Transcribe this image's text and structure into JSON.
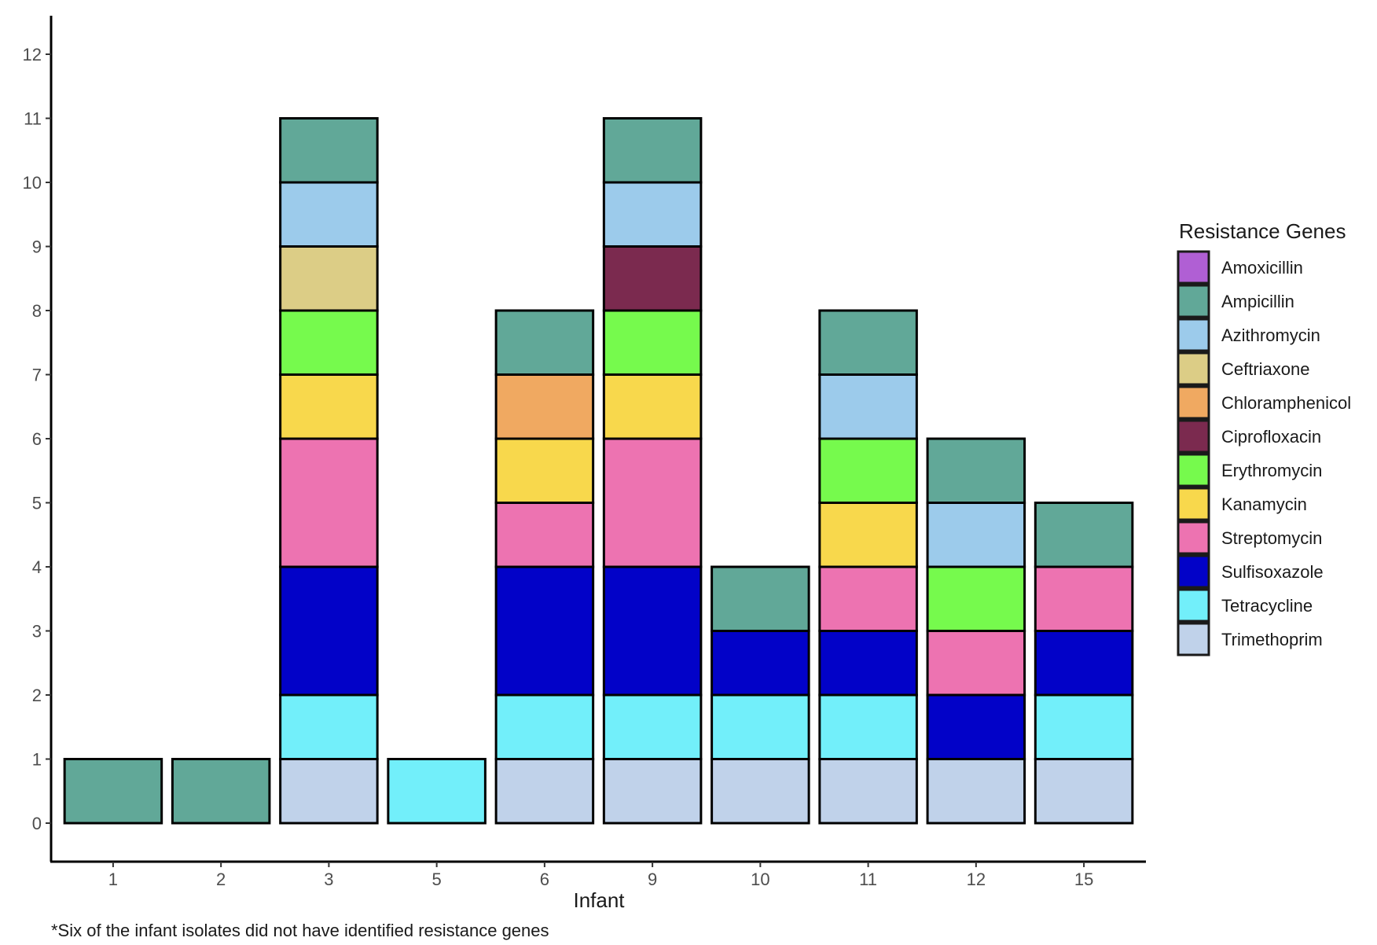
{
  "chart_data": {
    "type": "bar",
    "stacked": true,
    "xlabel": "Infant",
    "ylabel": "",
    "ylim": [
      0,
      12
    ],
    "yticks": [
      0,
      1,
      2,
      3,
      4,
      5,
      6,
      7,
      8,
      9,
      10,
      11,
      12
    ],
    "categories": [
      "1",
      "2",
      "3",
      "5",
      "6",
      "9",
      "10",
      "11",
      "12",
      "15"
    ],
    "legend_title": "Resistance Genes",
    "legend_position": "right",
    "caption": "*Six of the infant isolates did not have identified resistance genes",
    "colors": {
      "Amoxicillin": "#b05fd4",
      "Ampicillin": "#61a898",
      "Azithromycin": "#9ccbeb",
      "Ceftriaxone": "#dccd86",
      "Chloramphenicol": "#f0a961",
      "Ciprofloxacin": "#7b2a4f",
      "Erythromycin": "#76fa4d",
      "Kanamycin": "#f8d84c",
      "Streptomycin": "#ed73b1",
      "Sulfisoxazole": "#0202c8",
      "Tetracycline": "#72effa",
      "Trimethoprim": "#c0d2ea"
    },
    "series": [
      {
        "name": "Amoxicillin",
        "values": [
          0,
          0,
          0,
          0,
          0,
          0,
          0,
          0,
          0,
          0
        ]
      },
      {
        "name": "Ampicillin",
        "values": [
          1,
          1,
          1,
          0,
          1,
          1,
          1,
          1,
          1,
          1
        ]
      },
      {
        "name": "Azithromycin",
        "values": [
          0,
          0,
          1,
          0,
          0,
          1,
          0,
          1,
          1,
          0
        ]
      },
      {
        "name": "Ceftriaxone",
        "values": [
          0,
          0,
          1,
          0,
          0,
          0,
          0,
          0,
          0,
          0
        ]
      },
      {
        "name": "Chloramphenicol",
        "values": [
          0,
          0,
          0,
          0,
          1,
          0,
          0,
          0,
          0,
          0
        ]
      },
      {
        "name": "Ciprofloxacin",
        "values": [
          0,
          0,
          0,
          0,
          0,
          1,
          0,
          0,
          0,
          0
        ]
      },
      {
        "name": "Erythromycin",
        "values": [
          0,
          0,
          1,
          0,
          0,
          1,
          0,
          1,
          1,
          0
        ]
      },
      {
        "name": "Kanamycin",
        "values": [
          0,
          0,
          1,
          0,
          1,
          1,
          0,
          1,
          0,
          0
        ]
      },
      {
        "name": "Streptomycin",
        "values": [
          0,
          0,
          2,
          0,
          1,
          2,
          0,
          1,
          1,
          1
        ]
      },
      {
        "name": "Sulfisoxazole",
        "values": [
          0,
          0,
          2,
          0,
          2,
          2,
          1,
          1,
          1,
          1
        ]
      },
      {
        "name": "Tetracycline",
        "values": [
          0,
          0,
          1,
          1,
          1,
          1,
          1,
          1,
          0,
          1
        ]
      },
      {
        "name": "Trimethoprim",
        "values": [
          0,
          0,
          1,
          0,
          1,
          1,
          1,
          1,
          1,
          1
        ]
      }
    ]
  }
}
